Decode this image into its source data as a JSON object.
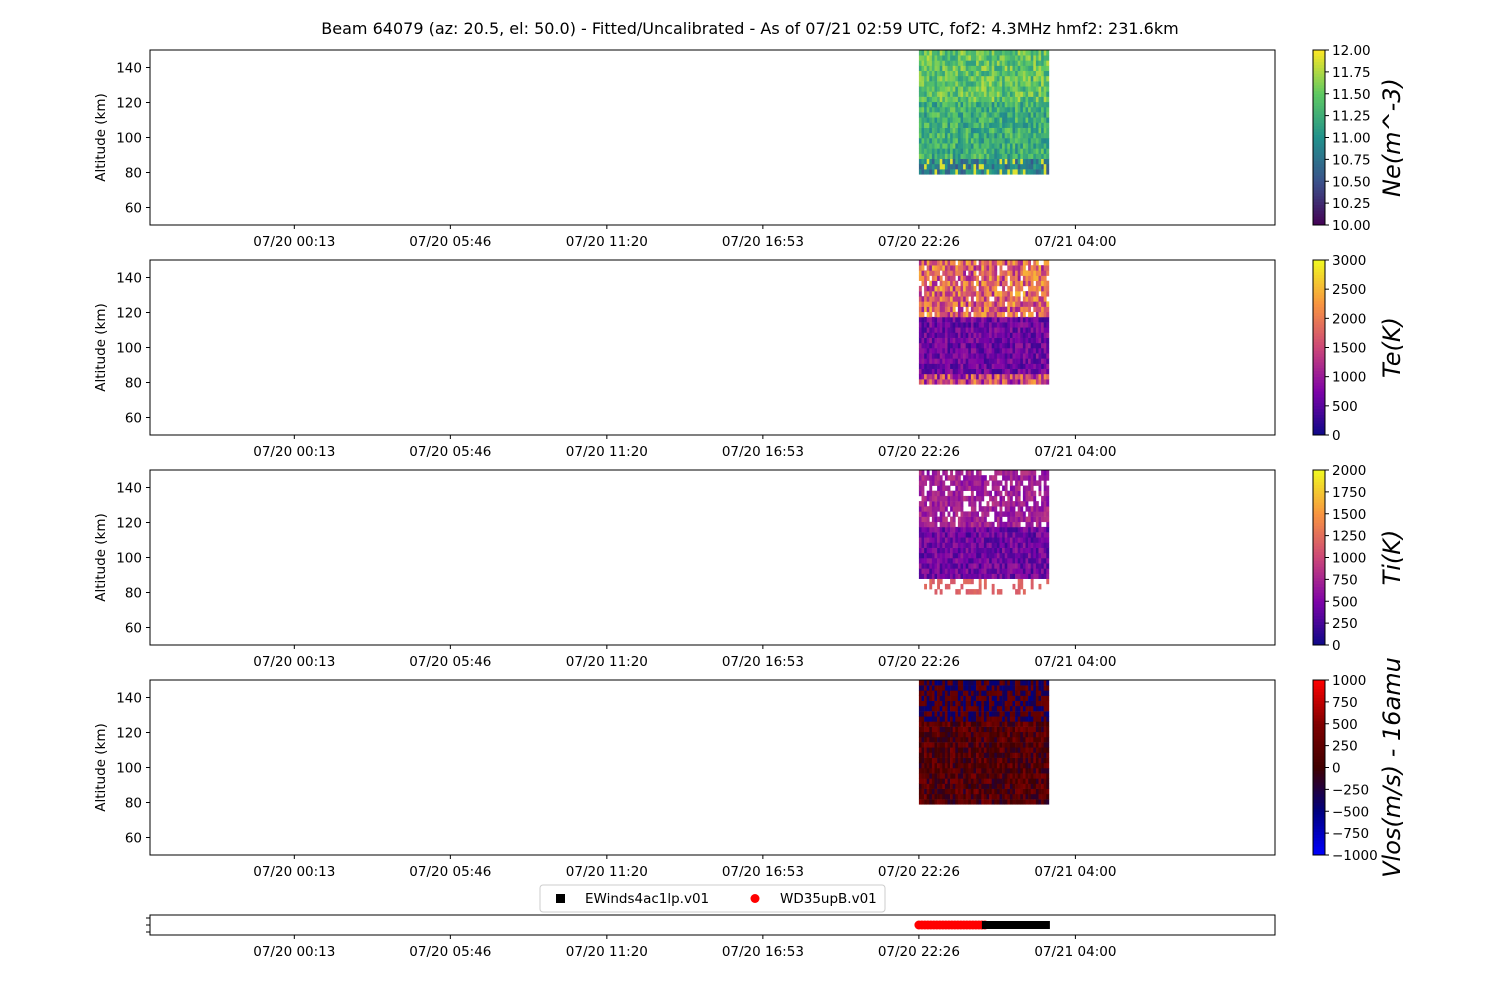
{
  "title": "Beam 64079 (az: 20.5, el: 50.0) - Fitted/Uncalibrated - As of 07/21 02:59 UTC, fof2: 4.3MHz  hmf2: 231.6km",
  "xticks": [
    "07/20 00:13",
    "07/20 05:46",
    "07/20 11:20",
    "07/20 16:53",
    "07/20 22:26",
    "07/21 04:00"
  ],
  "colors": {
    "frame": "#000000",
    "ne_cmap": [
      "#440154",
      "#3b528b",
      "#21918c",
      "#5ec962",
      "#fde725"
    ],
    "te_cmap": [
      "#0d0887",
      "#7e03a8",
      "#cc4778",
      "#f89540",
      "#f0f921"
    ],
    "vlos_cmap": [
      "#0000ff",
      "#000080",
      "#400000",
      "#800000",
      "#ff0000"
    ],
    "mode_a": "#000000",
    "mode_b": "#ff0000"
  },
  "chart_data": [
    {
      "type": "heatmap",
      "quantity": "Ne",
      "ylabel": "Altitude (km)",
      "yticks": [
        60,
        80,
        100,
        120,
        140
      ],
      "ylim": [
        50,
        150
      ],
      "x_range": [
        "07/19 19:05",
        "07/21 11:06"
      ],
      "data_time_range": [
        "07/20 22:26",
        "07/21 02:59"
      ],
      "data_alt_range": [
        79,
        150
      ],
      "colorbar": {
        "label": "Ne(m^-3)",
        "ticks": [
          "10.00",
          "10.25",
          "10.50",
          "10.75",
          "11.00",
          "11.25",
          "11.50",
          "11.75",
          "12.00"
        ],
        "vmin": 10.0,
        "vmax": 12.0,
        "cmap": "viridis",
        "scale": "log10"
      }
    },
    {
      "type": "heatmap",
      "quantity": "Te",
      "ylabel": "Altitude (km)",
      "yticks": [
        60,
        80,
        100,
        120,
        140
      ],
      "ylim": [
        50,
        150
      ],
      "x_range": [
        "07/19 19:05",
        "07/21 11:06"
      ],
      "data_time_range": [
        "07/20 22:26",
        "07/21 02:59"
      ],
      "data_alt_range": [
        79,
        150
      ],
      "colorbar": {
        "label": "Te(K)",
        "ticks": [
          "0",
          "500",
          "1000",
          "1500",
          "2000",
          "2500",
          "3000"
        ],
        "vmin": 0,
        "vmax": 3000,
        "cmap": "plasma"
      }
    },
    {
      "type": "heatmap",
      "quantity": "Ti",
      "ylabel": "Altitude (km)",
      "yticks": [
        60,
        80,
        100,
        120,
        140
      ],
      "ylim": [
        50,
        150
      ],
      "x_range": [
        "07/19 19:05",
        "07/21 11:06"
      ],
      "data_time_range": [
        "07/20 22:26",
        "07/21 02:59"
      ],
      "data_alt_range": [
        79,
        150
      ],
      "colorbar": {
        "label": "Ti(K)",
        "ticks": [
          "0",
          "250",
          "500",
          "750",
          "1000",
          "1250",
          "1500",
          "1750",
          "2000"
        ],
        "vmin": 0,
        "vmax": 2000,
        "cmap": "plasma"
      }
    },
    {
      "type": "heatmap",
      "quantity": "Vlos",
      "ylabel": "Altitude (km)",
      "yticks": [
        60,
        80,
        100,
        120,
        140
      ],
      "ylim": [
        50,
        150
      ],
      "x_range": [
        "07/19 19:05",
        "07/21 11:06"
      ],
      "data_time_range": [
        "07/20 22:26",
        "07/21 02:59"
      ],
      "data_alt_range": [
        79,
        150
      ],
      "colorbar": {
        "label": "Vlos(m/s) - 16amu",
        "ticks": [
          "−1000",
          "−750",
          "−500",
          "−250",
          "0",
          "250",
          "500",
          "750",
          "1000"
        ],
        "vmin": -1000,
        "vmax": 1000,
        "cmap": "bwr-dark"
      }
    },
    {
      "type": "scatter",
      "legend": {
        "location": "upper center"
      },
      "x_range": [
        "07/19 19:05",
        "07/21 11:06"
      ],
      "series": [
        {
          "name": "EWinds4ac1lp.v01",
          "marker": "square",
          "color": "#000000",
          "x_range": [
            "07/21 00:49",
            "07/21 02:59"
          ]
        },
        {
          "name": "WD35upB.v01",
          "marker": "circle",
          "color": "#ff0000",
          "x_range": [
            "07/20 22:26",
            "07/21 00:49"
          ]
        }
      ]
    }
  ]
}
